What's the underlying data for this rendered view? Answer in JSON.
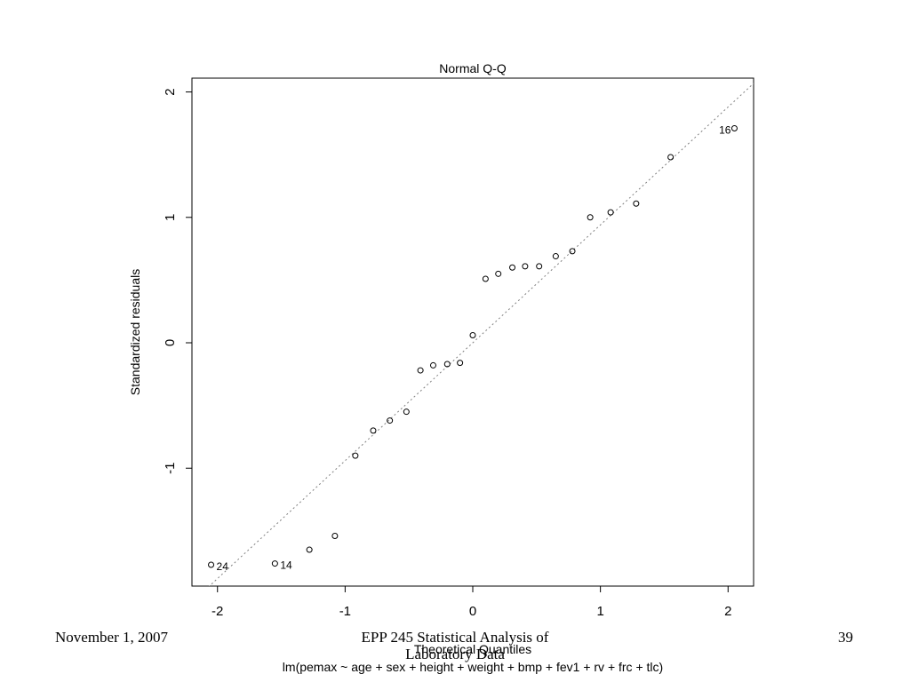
{
  "chart_data": {
    "type": "scatter",
    "title": "Normal Q-Q",
    "xlabel": "Theoretical Quantiles",
    "ylabel": "Standardized residuals",
    "subtitle": "lm(pemax ~ age + sex + height + weight + bmp + fev1 + rv + frc + tlc)",
    "xlim": [
      -2.2,
      2.2
    ],
    "ylim": [
      -1.94,
      2.11
    ],
    "x_ticks": [
      -2,
      -1,
      0,
      1,
      2
    ],
    "y_ticks": [
      -1,
      0,
      1,
      2
    ],
    "x_tick_labels": [
      "-2",
      "-1",
      "0",
      "1",
      "2"
    ],
    "y_tick_labels": [
      "-1",
      "0",
      "1",
      "2"
    ],
    "grid": false,
    "reference_line": {
      "intercept": 0.0,
      "slope": 0.94,
      "style": "dotted",
      "color": "#808080"
    },
    "points": [
      {
        "x": -2.05,
        "y": -1.77,
        "label": "24"
      },
      {
        "x": -1.55,
        "y": -1.76,
        "label": "14"
      },
      {
        "x": -1.28,
        "y": -1.65
      },
      {
        "x": -1.08,
        "y": -1.54
      },
      {
        "x": -0.92,
        "y": -0.9
      },
      {
        "x": -0.78,
        "y": -0.7
      },
      {
        "x": -0.65,
        "y": -0.62
      },
      {
        "x": -0.52,
        "y": -0.55
      },
      {
        "x": -0.41,
        "y": -0.22
      },
      {
        "x": -0.31,
        "y": -0.18
      },
      {
        "x": -0.2,
        "y": -0.17
      },
      {
        "x": -0.1,
        "y": -0.16
      },
      {
        "x": 0.0,
        "y": 0.06
      },
      {
        "x": 0.1,
        "y": 0.51
      },
      {
        "x": 0.2,
        "y": 0.55
      },
      {
        "x": 0.31,
        "y": 0.6
      },
      {
        "x": 0.41,
        "y": 0.61
      },
      {
        "x": 0.52,
        "y": 0.61
      },
      {
        "x": 0.65,
        "y": 0.69
      },
      {
        "x": 0.78,
        "y": 0.73
      },
      {
        "x": 0.92,
        "y": 1.0
      },
      {
        "x": 1.08,
        "y": 1.04
      },
      {
        "x": 1.28,
        "y": 1.11
      },
      {
        "x": 1.55,
        "y": 1.48
      },
      {
        "x": 2.05,
        "y": 1.71,
        "label": "16"
      }
    ]
  },
  "footer": {
    "date": "November 1, 2007",
    "title_line1": "EPP 245 Statistical Analysis of",
    "title_line2": "Laboratory Data",
    "page": "39"
  }
}
